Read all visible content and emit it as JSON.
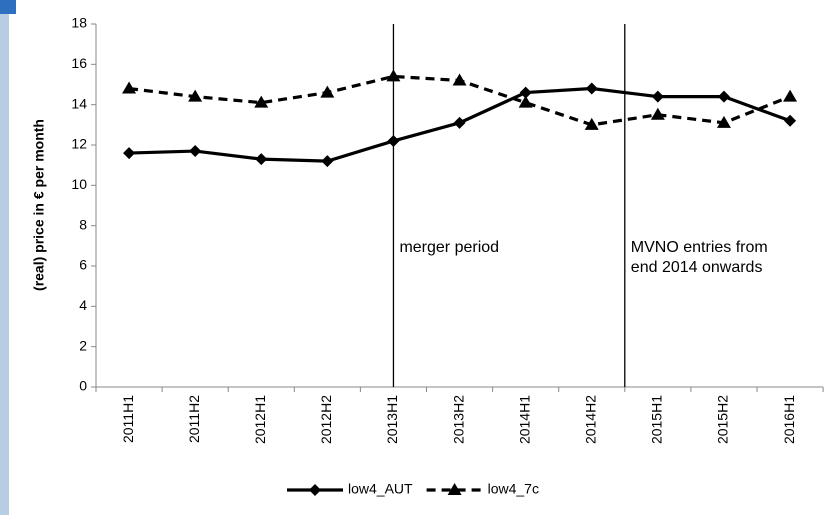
{
  "chart_data": {
    "type": "line",
    "y_label": "(real) price in € per month",
    "categories": [
      "2011H1",
      "2011H2",
      "2012H1",
      "2012H2",
      "2013H1",
      "2013H2",
      "2014H1",
      "2014H2",
      "2015H1",
      "2015H2",
      "2016H1"
    ],
    "series": [
      {
        "name": "low4_AUT",
        "color": "#000000",
        "marker": "diamond",
        "dash": false,
        "values": [
          11.6,
          11.7,
          11.3,
          11.2,
          12.2,
          13.1,
          14.6,
          14.8,
          14.4,
          14.4,
          13.2
        ]
      },
      {
        "name": "low4_7c",
        "color": "#000000",
        "marker": "triangle",
        "dash": true,
        "values": [
          14.8,
          14.4,
          14.1,
          14.6,
          15.4,
          15.2,
          14.1,
          13.0,
          13.5,
          13.1,
          14.4
        ]
      }
    ],
    "annotations": [
      {
        "x": 4,
        "lines": [
          "merger period"
        ]
      },
      {
        "x": 7.5,
        "lines": [
          "MVNO entries from",
          "end 2014 onwards"
        ]
      }
    ],
    "ylim": [
      0,
      18
    ],
    "yticks": [
      0,
      2,
      4,
      6,
      8,
      10,
      12,
      14,
      16,
      18
    ],
    "grid": false,
    "legend": "bottom"
  }
}
